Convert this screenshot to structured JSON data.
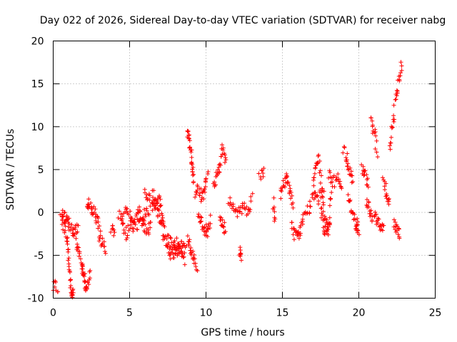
{
  "chart_data": {
    "type": "scatter",
    "title": "Day 022 of 2026, Sidereal Day-to-day VTEC variation (SDTVAR) for receiver nabg",
    "xlabel": "GPS time / hours",
    "ylabel": "SDTVAR / TECUs",
    "xlim": [
      0,
      25
    ],
    "ylim": [
      -10,
      20
    ],
    "xticks": [
      0,
      5,
      10,
      15,
      20,
      25
    ],
    "yticks": [
      -10,
      -5,
      0,
      5,
      10,
      15,
      20
    ],
    "grid": true,
    "marker": "+",
    "color": "#ff0000",
    "series": [
      {
        "name": "SDTVAR",
        "segments": [
          {
            "x": [
              0.0,
              0.3
            ],
            "y": [
              -8.8,
              -8.6
            ]
          },
          {
            "x": [
              0.5,
              0.7,
              0.9,
              1.0,
              1.1,
              1.2,
              1.3
            ],
            "y": [
              -0.5,
              -1.5,
              -3.0,
              -5.0,
              -7.5,
              -9.5,
              -9.0
            ]
          },
          {
            "x": [
              0.6,
              0.8,
              1.0,
              1.2,
              1.4,
              1.6
            ],
            "y": [
              -0.3,
              -0.8,
              -1.2,
              -2.0,
              -2.5,
              -1.5
            ]
          },
          {
            "x": [
              1.5,
              1.7,
              1.9,
              2.0,
              2.1,
              2.2,
              2.4
            ],
            "y": [
              -3.5,
              -4.5,
              -6.0,
              -7.0,
              -8.5,
              -9.0,
              -7.0
            ]
          },
          {
            "x": [
              2.2,
              2.4,
              2.6,
              2.8,
              3.0
            ],
            "y": [
              1.3,
              0.8,
              0.2,
              -0.5,
              -1.5
            ]
          },
          {
            "x": [
              3.0,
              3.2,
              3.4
            ],
            "y": [
              -2.5,
              -3.5,
              -4.8
            ]
          },
          {
            "x": [
              3.8,
              4.0
            ],
            "y": [
              -2.0,
              -2.4
            ]
          },
          {
            "x": [
              4.3,
              4.6,
              4.9,
              5.2,
              5.5,
              5.8,
              6.1,
              6.4
            ],
            "y": [
              0.0,
              -0.8,
              0.5,
              -1.5,
              0.8,
              -1.0,
              0.2,
              -1.5
            ]
          },
          {
            "x": [
              4.5,
              4.8,
              5.1,
              5.4,
              5.7,
              6.0,
              6.3
            ],
            "y": [
              -1.5,
              -2.5,
              -1.0,
              -2.0,
              -0.5,
              -1.8,
              -2.5
            ]
          },
          {
            "x": [
              6.0,
              6.3,
              6.6,
              6.9,
              7.1,
              7.3
            ],
            "y": [
              2.5,
              1.5,
              0.5,
              1.8,
              0.2,
              -1.5
            ]
          },
          {
            "x": [
              6.5,
              6.7,
              6.9,
              7.1
            ],
            "y": [
              2.3,
              1.0,
              0.0,
              -1.2
            ]
          },
          {
            "x": [
              7.2,
              7.4,
              7.6,
              7.8,
              8.0,
              8.2,
              8.4,
              8.6
            ],
            "y": [
              -2.5,
              -3.5,
              -4.5,
              -5.0,
              -4.2,
              -4.6,
              -3.8,
              -5.5
            ]
          },
          {
            "x": [
              7.5,
              7.8,
              8.1,
              8.4,
              8.7
            ],
            "y": [
              -3.0,
              -4.0,
              -3.5,
              -4.5,
              -4.0
            ]
          },
          {
            "x": [
              8.8,
              8.9,
              9.0,
              9.1,
              9.2
            ],
            "y": [
              9.0,
              8.5,
              7.0,
              5.0,
              3.5
            ]
          },
          {
            "x": [
              8.8,
              9.0,
              9.2,
              9.4
            ],
            "y": [
              -3.0,
              -4.5,
              -5.5,
              -6.5
            ]
          },
          {
            "x": [
              9.3,
              9.5,
              9.7,
              9.9,
              10.1
            ],
            "y": [
              2.0,
              3.5,
              1.5,
              2.5,
              4.5
            ]
          },
          {
            "x": [
              9.5,
              9.7,
              9.9,
              10.1,
              10.3
            ],
            "y": [
              -0.5,
              -1.2,
              -1.8,
              -2.3,
              -1.0
            ]
          },
          {
            "x": [
              10.5,
              10.7,
              10.9,
              11.1,
              11.3
            ],
            "y": [
              3.0,
              4.5,
              5.5,
              7.5,
              6.0
            ]
          },
          {
            "x": [
              10.9,
              11.1,
              11.3
            ],
            "y": [
              -0.5,
              -1.5,
              -2.0
            ]
          },
          {
            "x": [
              11.5,
              11.8,
              12.1,
              12.4,
              12.7,
              13.0
            ],
            "y": [
              1.5,
              0.5,
              -0.5,
              0.8,
              0.2,
              1.5
            ]
          },
          {
            "x": [
              12.2,
              12.3
            ],
            "y": [
              -4.5,
              -5.2
            ]
          },
          {
            "x": [
              13.5,
              13.8
            ],
            "y": [
              4.2,
              4.5
            ]
          },
          {
            "x": [
              14.4,
              14.5
            ],
            "y": [
              1.0,
              -0.8
            ]
          },
          {
            "x": [
              14.9,
              15.1,
              15.3,
              15.5,
              15.7
            ],
            "y": [
              2.0,
              3.5,
              4.0,
              2.5,
              1.0
            ]
          },
          {
            "x": [
              15.6,
              15.8,
              16.0,
              16.2,
              16.4
            ],
            "y": [
              -1.5,
              -2.5,
              -3.0,
              -2.0,
              -0.5
            ]
          },
          {
            "x": [
              16.5,
              16.8,
              17.1,
              17.4,
              17.7
            ],
            "y": [
              -0.5,
              0.8,
              2.0,
              1.5,
              3.0
            ]
          },
          {
            "x": [
              17.0,
              17.2,
              17.4,
              17.6,
              17.8,
              18.0,
              18.2
            ],
            "y": [
              3.5,
              5.5,
              6.0,
              2.0,
              -1.0,
              -2.0,
              3.0
            ]
          },
          {
            "x": [
              17.5,
              17.7,
              17.9,
              18.1
            ],
            "y": [
              0.5,
              -1.5,
              -2.5,
              -1.0
            ]
          },
          {
            "x": [
              18.0,
              18.3,
              18.6,
              18.9
            ],
            "y": [
              4.5,
              3.5,
              4.0,
              3.0
            ]
          },
          {
            "x": [
              19.0,
              19.2,
              19.4,
              19.6
            ],
            "y": [
              7.5,
              6.5,
              5.0,
              4.0
            ]
          },
          {
            "x": [
              19.3,
              19.5,
              19.7,
              19.9
            ],
            "y": [
              1.5,
              0.5,
              -0.5,
              -1.5
            ]
          },
          {
            "x": [
              19.8,
              20.0
            ],
            "y": [
              -1.8,
              -2.3
            ]
          },
          {
            "x": [
              20.2,
              20.4,
              20.6
            ],
            "y": [
              5.0,
              4.5,
              3.5
            ]
          },
          {
            "x": [
              20.5,
              20.7,
              20.9
            ],
            "y": [
              1.0,
              0.5,
              -0.5
            ]
          },
          {
            "x": [
              20.8,
              21.0,
              21.2
            ],
            "y": [
              11.0,
              9.5,
              7.0
            ]
          },
          {
            "x": [
              21.0,
              21.2,
              21.4,
              21.6
            ],
            "y": [
              0.0,
              -1.0,
              -2.0,
              -1.5
            ]
          },
          {
            "x": [
              21.6,
              21.8,
              22.0
            ],
            "y": [
              4.0,
              2.5,
              1.0
            ]
          },
          {
            "x": [
              22.0,
              22.2,
              22.4,
              22.6,
              22.8
            ],
            "y": [
              7.5,
              10.0,
              13.0,
              15.5,
              17.5
            ]
          },
          {
            "x": [
              22.3,
              22.5,
              22.7
            ],
            "y": [
              -1.0,
              -2.0,
              -2.5
            ]
          }
        ]
      }
    ]
  }
}
